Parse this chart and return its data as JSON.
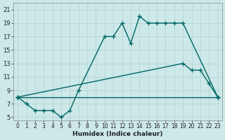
{
  "xlabel": "Humidex (Indice chaleur)",
  "bg_color": "#cce8e8",
  "grid_color": "#b8d8d8",
  "line_color": "#006666",
  "xlim": [
    -0.5,
    23.5
  ],
  "ylim": [
    4.5,
    22
  ],
  "xticks": [
    0,
    1,
    2,
    3,
    4,
    5,
    6,
    7,
    8,
    9,
    10,
    11,
    12,
    13,
    14,
    15,
    16,
    17,
    18,
    19,
    20,
    21,
    22,
    23
  ],
  "yticks": [
    5,
    7,
    9,
    11,
    13,
    15,
    17,
    19,
    21
  ],
  "series": [
    {
      "x": [
        0,
        1,
        2,
        3,
        4,
        5,
        6,
        7,
        10,
        11,
        12,
        13,
        14,
        15,
        16,
        17,
        18,
        19,
        23
      ],
      "y": [
        8,
        7,
        6,
        6,
        6,
        5,
        6,
        9,
        17,
        17,
        19,
        16,
        20,
        19,
        19,
        19,
        19,
        19,
        8
      ]
    },
    {
      "x": [
        0,
        19,
        20,
        21,
        22,
        23
      ],
      "y": [
        8,
        13,
        12,
        12,
        10,
        8
      ]
    },
    {
      "x": [
        0,
        23
      ],
      "y": [
        8,
        8
      ]
    }
  ],
  "marker": "+",
  "markersize": 4,
  "linewidth": 1.0
}
